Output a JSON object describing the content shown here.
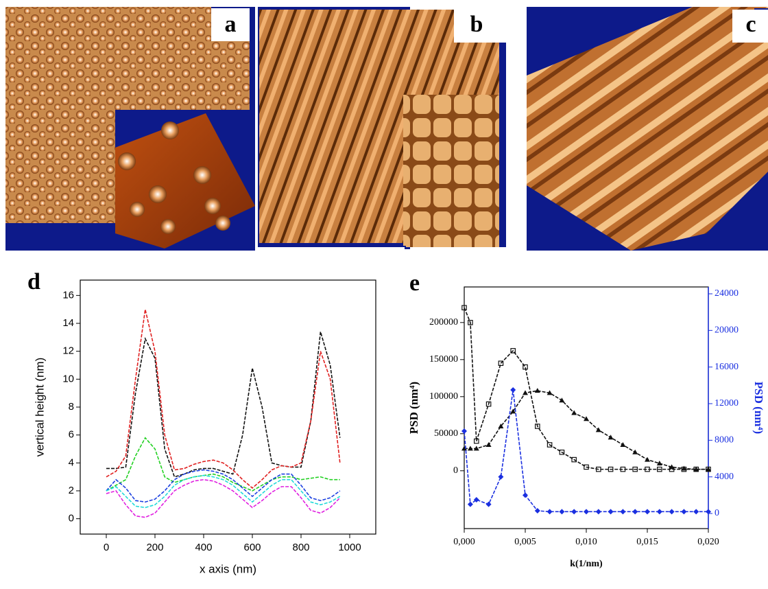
{
  "images": [
    {
      "label": "a"
    },
    {
      "label": "b"
    },
    {
      "label": "c"
    }
  ],
  "chart_data": [
    {
      "type": "line",
      "panel_label": "d",
      "xlabel": "x axis (nm)",
      "ylabel": "vertical height (nm)",
      "xlim": [
        -107,
        1107
      ],
      "xticks": [
        0,
        200,
        400,
        600,
        800,
        1000
      ],
      "ylim": [
        -1.1,
        17.1
      ],
      "yticks": [
        0,
        2,
        4,
        6,
        8,
        10,
        12,
        14,
        16
      ],
      "x": [
        0,
        40,
        80,
        120,
        160,
        200,
        240,
        280,
        320,
        360,
        400,
        440,
        480,
        520,
        560,
        600,
        640,
        680,
        720,
        760,
        800,
        840,
        880,
        920,
        960
      ],
      "series": [
        {
          "color": "#111111",
          "values": [
            3.6,
            3.6,
            3.7,
            9,
            12.9,
            11.5,
            5,
            3,
            3.2,
            3.5,
            3.6,
            3.6,
            3.4,
            3.2,
            6,
            10.8,
            8,
            4,
            3.8,
            3.7,
            3.7,
            7,
            13.4,
            11,
            5.8
          ]
        },
        {
          "color": "#e02020",
          "values": [
            3,
            3.4,
            4.5,
            10,
            15,
            12,
            6,
            3.5,
            3.6,
            3.9,
            4.1,
            4.2,
            4,
            3.5,
            2.8,
            2.2,
            2.8,
            3.5,
            3.8,
            3.7,
            4,
            7,
            12,
            10,
            4
          ]
        },
        {
          "color": "#22d022",
          "values": [
            2,
            2.4,
            2.8,
            4.5,
            5.8,
            5,
            3,
            2.6,
            2.8,
            3,
            3.1,
            3.2,
            3,
            2.6,
            2.3,
            2,
            2.4,
            2.8,
            3,
            3,
            2.8,
            2.9,
            3,
            2.8,
            2.8
          ]
        },
        {
          "color": "#1a3fe0",
          "values": [
            2,
            2.8,
            2.2,
            1.3,
            1.2,
            1.4,
            2,
            2.8,
            3.2,
            3.4,
            3.5,
            3.4,
            3.2,
            2.8,
            2.2,
            1.6,
            2.2,
            2.8,
            3.2,
            3.2,
            2.4,
            1.5,
            1.3,
            1.5,
            2
          ]
        },
        {
          "color": "#20dada",
          "values": [
            2,
            2.3,
            1.6,
            0.9,
            0.8,
            1,
            1.6,
            2.4,
            2.8,
            3,
            3.1,
            3,
            2.8,
            2.4,
            1.8,
            1.2,
            1.8,
            2.4,
            2.8,
            2.8,
            2,
            1.2,
            1,
            1.2,
            1.6
          ]
        },
        {
          "color": "#e020e0",
          "values": [
            1.8,
            2,
            1,
            0.2,
            0.1,
            0.4,
            1.2,
            2,
            2.4,
            2.7,
            2.8,
            2.7,
            2.4,
            2,
            1.4,
            0.8,
            1.3,
            1.9,
            2.3,
            2.3,
            1.5,
            0.6,
            0.4,
            0.8,
            1.5
          ]
        }
      ]
    },
    {
      "type": "line",
      "panel_label": "e",
      "xlabel": "k(1/nm)",
      "ylabel": "PSD (nm⁴)",
      "y2label": "PSD (nm⁴)",
      "y2color": "#1a2fe0",
      "xlim": [
        0,
        0.02
      ],
      "xticks": [
        {
          "value": 0,
          "label": "0,000"
        },
        {
          "value": 0.005,
          "label": "0,005"
        },
        {
          "value": 0.01,
          "label": "0,010"
        },
        {
          "value": 0.015,
          "label": "0,015"
        },
        {
          "value": 0.02,
          "label": "0,020"
        }
      ],
      "ylim": [
        -78000,
        248000
      ],
      "yticks": [
        0,
        50000,
        100000,
        150000,
        200000
      ],
      "y2lim": [
        -1650,
        24750
      ],
      "y2ticks": [
        0,
        4000,
        8000,
        12000,
        16000,
        20000,
        24000
      ],
      "x": [
        0,
        0.0005,
        0.001,
        0.002,
        0.003,
        0.004,
        0.005,
        0.006,
        0.007,
        0.008,
        0.009,
        0.01,
        0.011,
        0.012,
        0.013,
        0.014,
        0.015,
        0.016,
        0.017,
        0.018,
        0.019,
        0.02
      ],
      "series": [
        {
          "color": "#111111",
          "marker": "square",
          "values": [
            220000,
            200000,
            40000,
            90000,
            145000,
            162000,
            140000,
            60000,
            35000,
            25000,
            15000,
            5000,
            2000,
            2000,
            2000,
            2000,
            2000,
            2000,
            2000,
            2000,
            2000,
            2000
          ]
        },
        {
          "color": "#111111",
          "marker": "triangle",
          "values": [
            30000,
            30000,
            30000,
            35000,
            60000,
            80000,
            105000,
            108000,
            105000,
            95000,
            78000,
            70000,
            55000,
            45000,
            35000,
            25000,
            15000,
            10000,
            5000,
            3000,
            2000,
            2000
          ]
        },
        {
          "color": "#1a2fe0",
          "marker": "diamond",
          "axis": "y2",
          "values": [
            9000,
            1000,
            1500,
            1000,
            4000,
            13500,
            2000,
            300,
            200,
            200,
            200,
            200,
            200,
            200,
            200,
            200,
            200,
            200,
            200,
            200,
            200,
            200
          ]
        }
      ]
    }
  ]
}
